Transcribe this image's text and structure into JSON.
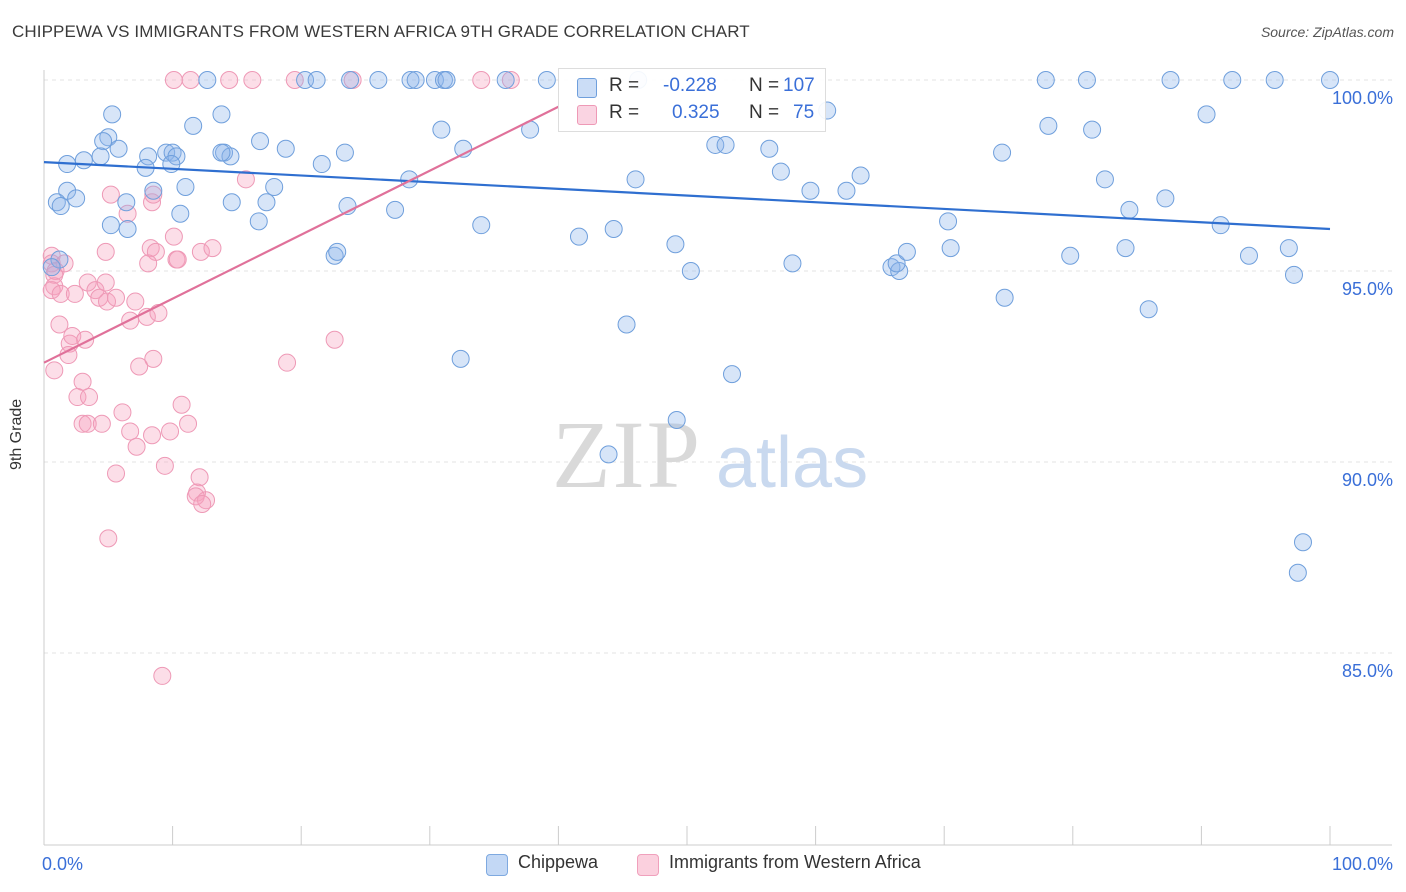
{
  "title": "CHIPPEWA VS IMMIGRANTS FROM WESTERN AFRICA 9TH GRADE CORRELATION CHART",
  "source": "Source: ZipAtlas.com",
  "watermark": {
    "zip": "ZIP",
    "atlas": "atlas"
  },
  "stats": [
    {
      "r_label": "R =",
      "r": "-0.228",
      "n_label": "N =",
      "n": "107",
      "color": "#7aaee8"
    },
    {
      "r_label": "R =",
      "r": "0.325",
      "n_label": "N =",
      "n": "75",
      "color": "#f0a0bc"
    }
  ],
  "legend": [
    {
      "label": "Chippewa",
      "color": "#aecbf2"
    },
    {
      "label": "Immigrants from Western Africa",
      "color": "#f8c0d2"
    }
  ],
  "colors": {
    "blue_fill": "rgba(140,180,235,0.35)",
    "blue_stroke": "#6f9fdc",
    "blue_line": "#2f6fd0",
    "pink_fill": "rgba(245,160,190,0.35)",
    "pink_stroke": "#ee99b6",
    "pink_line": "#e0719a",
    "tick_text": "#3a6fd8"
  },
  "chart_data": {
    "type": "scatter",
    "title": "CHIPPEWA VS IMMIGRANTS FROM WESTERN AFRICA 9TH GRADE CORRELATION CHART",
    "xlabel": "",
    "ylabel": "9th Grade",
    "xlim": [
      0,
      100
    ],
    "ylim": [
      80.5,
      101.0
    ],
    "x_tick_labels": [
      {
        "value": 0,
        "label": "0.0%"
      },
      {
        "value": 100,
        "label": "100.0%"
      }
    ],
    "y_ticks": [
      {
        "value": 100,
        "label": "100.0%"
      },
      {
        "value": 95,
        "label": "95.0%"
      },
      {
        "value": 90,
        "label": "90.0%"
      },
      {
        "value": 85,
        "label": "85.0%"
      }
    ],
    "grid": true,
    "legend_position": "bottom",
    "series": [
      {
        "name": "Chippewa",
        "trend": {
          "x": [
            0,
            100
          ],
          "y": [
            97.85,
            96.1
          ]
        },
        "points": [
          [
            12.7,
            100
          ],
          [
            20.3,
            100
          ],
          [
            21.2,
            100
          ],
          [
            23.8,
            100
          ],
          [
            26.0,
            100
          ],
          [
            28.5,
            100
          ],
          [
            28.9,
            100
          ],
          [
            30.4,
            100
          ],
          [
            31.1,
            100
          ],
          [
            31.3,
            100
          ],
          [
            35.9,
            100
          ],
          [
            39.1,
            100
          ],
          [
            46.2,
            100
          ],
          [
            77.9,
            100
          ],
          [
            81.1,
            100
          ],
          [
            87.6,
            100
          ],
          [
            92.4,
            100
          ],
          [
            95.7,
            100
          ],
          [
            100,
            100
          ],
          [
            5.3,
            99.1
          ],
          [
            13.8,
            99.1
          ],
          [
            30.9,
            98.7
          ],
          [
            37.8,
            98.7
          ],
          [
            60.9,
            99.2
          ],
          [
            78.1,
            98.8
          ],
          [
            81.5,
            98.7
          ],
          [
            90.4,
            99.1
          ],
          [
            11.6,
            98.8
          ],
          [
            5.0,
            98.5
          ],
          [
            4.6,
            98.4
          ],
          [
            5.8,
            98.2
          ],
          [
            14.0,
            98.1
          ],
          [
            16.8,
            98.4
          ],
          [
            18.8,
            98.2
          ],
          [
            23.4,
            98.1
          ],
          [
            32.6,
            98.2
          ],
          [
            52.2,
            98.3
          ],
          [
            53.0,
            98.3
          ],
          [
            56.4,
            98.2
          ],
          [
            74.5,
            98.1
          ],
          [
            1.8,
            97.8
          ],
          [
            3.1,
            97.9
          ],
          [
            4.4,
            98.0
          ],
          [
            8.1,
            98.0
          ],
          [
            9.5,
            98.1
          ],
          [
            10.0,
            98.1
          ],
          [
            10.3,
            98.0
          ],
          [
            14.5,
            98.0
          ],
          [
            13.8,
            98.1
          ],
          [
            9.9,
            97.8
          ],
          [
            7.9,
            97.7
          ],
          [
            11.0,
            97.2
          ],
          [
            17.9,
            97.2
          ],
          [
            21.6,
            97.8
          ],
          [
            28.4,
            97.4
          ],
          [
            46.0,
            97.4
          ],
          [
            57.3,
            97.6
          ],
          [
            59.6,
            97.1
          ],
          [
            62.4,
            97.1
          ],
          [
            63.5,
            97.5
          ],
          [
            82.5,
            97.4
          ],
          [
            1.8,
            97.1
          ],
          [
            8.5,
            97.1
          ],
          [
            1.0,
            96.8
          ],
          [
            1.3,
            96.7
          ],
          [
            2.5,
            96.9
          ],
          [
            6.4,
            96.8
          ],
          [
            14.6,
            96.8
          ],
          [
            17.3,
            96.8
          ],
          [
            23.6,
            96.7
          ],
          [
            27.3,
            96.6
          ],
          [
            84.4,
            96.6
          ],
          [
            87.2,
            96.9
          ],
          [
            5.2,
            96.2
          ],
          [
            6.5,
            96.1
          ],
          [
            10.6,
            96.5
          ],
          [
            16.7,
            96.3
          ],
          [
            34.0,
            96.2
          ],
          [
            41.6,
            95.9
          ],
          [
            44.3,
            96.1
          ],
          [
            49.1,
            95.7
          ],
          [
            70.3,
            96.3
          ],
          [
            70.5,
            95.6
          ],
          [
            79.8,
            95.4
          ],
          [
            84.1,
            95.6
          ],
          [
            91.5,
            96.2
          ],
          [
            93.7,
            95.4
          ],
          [
            96.8,
            95.6
          ],
          [
            22.6,
            95.4
          ],
          [
            22.8,
            95.5
          ],
          [
            1.2,
            95.3
          ],
          [
            0.6,
            95.1
          ],
          [
            50.3,
            95.0
          ],
          [
            58.2,
            95.2
          ],
          [
            65.9,
            95.1
          ],
          [
            66.5,
            95.0
          ],
          [
            66.3,
            95.2
          ],
          [
            67.1,
            95.5
          ],
          [
            97.2,
            94.9
          ],
          [
            74.7,
            94.3
          ],
          [
            85.9,
            94.0
          ],
          [
            45.3,
            93.6
          ],
          [
            32.4,
            92.7
          ],
          [
            53.5,
            92.3
          ],
          [
            49.2,
            91.1
          ],
          [
            43.9,
            90.2
          ],
          [
            97.9,
            87.9
          ],
          [
            97.5,
            87.1
          ]
        ]
      },
      {
        "name": "Immigrants from Western Africa",
        "trend": {
          "x": [
            0,
            40
          ],
          "y": [
            92.6,
            99.3
          ]
        },
        "points": [
          [
            10.1,
            100
          ],
          [
            11.4,
            100
          ],
          [
            14.4,
            100
          ],
          [
            16.2,
            100
          ],
          [
            19.5,
            100
          ],
          [
            24.0,
            100
          ],
          [
            34.0,
            100
          ],
          [
            36.3,
            100
          ],
          [
            5.2,
            97.0
          ],
          [
            15.7,
            97.4
          ],
          [
            8.4,
            96.8
          ],
          [
            8.5,
            97.0
          ],
          [
            6.5,
            96.5
          ],
          [
            10.1,
            95.9
          ],
          [
            8.3,
            95.6
          ],
          [
            4.8,
            95.5
          ],
          [
            8.7,
            95.5
          ],
          [
            8.1,
            95.2
          ],
          [
            10.3,
            95.3
          ],
          [
            10.4,
            95.3
          ],
          [
            12.2,
            95.5
          ],
          [
            13.1,
            95.6
          ],
          [
            0.6,
            95.4
          ],
          [
            0.6,
            95.2
          ],
          [
            0.9,
            95.0
          ],
          [
            1.6,
            95.2
          ],
          [
            0.8,
            94.9
          ],
          [
            0.8,
            94.6
          ],
          [
            0.6,
            94.5
          ],
          [
            1.3,
            94.4
          ],
          [
            2.4,
            94.4
          ],
          [
            3.4,
            94.7
          ],
          [
            4.0,
            94.5
          ],
          [
            4.8,
            94.7
          ],
          [
            4.3,
            94.3
          ],
          [
            4.9,
            94.2
          ],
          [
            5.6,
            94.3
          ],
          [
            7.1,
            94.2
          ],
          [
            8.0,
            93.8
          ],
          [
            6.7,
            93.7
          ],
          [
            8.9,
            93.9
          ],
          [
            1.2,
            93.6
          ],
          [
            2.0,
            93.1
          ],
          [
            2.2,
            93.3
          ],
          [
            3.2,
            93.2
          ],
          [
            22.6,
            93.2
          ],
          [
            1.9,
            92.8
          ],
          [
            0.8,
            92.4
          ],
          [
            8.5,
            92.7
          ],
          [
            7.4,
            92.5
          ],
          [
            18.9,
            92.6
          ],
          [
            3.0,
            92.1
          ],
          [
            2.6,
            91.7
          ],
          [
            3.5,
            91.7
          ],
          [
            3.0,
            91.0
          ],
          [
            3.4,
            91.0
          ],
          [
            4.5,
            91.0
          ],
          [
            6.1,
            91.3
          ],
          [
            10.7,
            91.5
          ],
          [
            11.2,
            91.0
          ],
          [
            6.7,
            90.8
          ],
          [
            8.4,
            90.7
          ],
          [
            9.8,
            90.8
          ],
          [
            7.2,
            90.4
          ],
          [
            9.4,
            89.9
          ],
          [
            5.6,
            89.7
          ],
          [
            12.1,
            89.6
          ],
          [
            11.9,
            89.2
          ],
          [
            11.8,
            89.1
          ],
          [
            12.6,
            89.0
          ],
          [
            12.3,
            88.9
          ],
          [
            5.0,
            88.0
          ],
          [
            9.2,
            84.4
          ]
        ]
      }
    ]
  }
}
